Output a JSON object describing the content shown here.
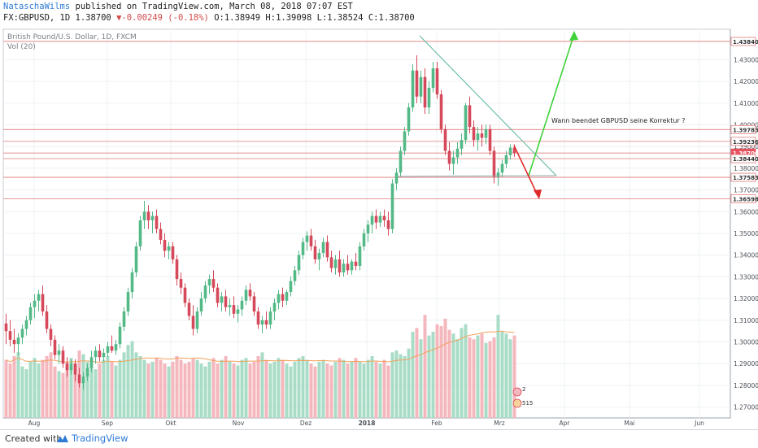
{
  "header": {
    "author": "NataschaWilms",
    "published": "published on TradingView.com, March 08, 2018 07:07 EST",
    "symbol": "FX:GBPUSD, 1D 1.38700",
    "change": "▼-0.00249 (-0.18%)",
    "ohlc": "O:1.38949 H:1.39098 L:1.38524 C:1.38700"
  },
  "footer": {
    "created_with": "Created with",
    "brand": "TradingView"
  },
  "chart_data": {
    "type": "candlestick",
    "title": "British Pound/U.S. Dollar, 1D, FXCM",
    "volume_label": "Vol (20)",
    "annotation": "Wann beendet GBPUSD seine Korrektur ?",
    "x_tick_labels": [
      "Aug",
      "Sep",
      "Okt",
      "Nov",
      "Dez",
      "2018",
      "Feb",
      "Mrz",
      "Apr",
      "Mai",
      "Jun"
    ],
    "y_tick_labels": [
      "1.27000",
      "1.28000",
      "1.29000",
      "1.30000",
      "1.31000",
      "1.32000",
      "1.33000",
      "1.34000",
      "1.35000",
      "1.36000",
      "1.37000",
      "1.38000",
      "1.39000",
      "1.40000",
      "1.41000",
      "1.42000",
      "1.43000"
    ],
    "ylim": [
      1.265,
      1.444
    ],
    "horizontal_levels": [
      {
        "label": "1.43840",
        "value": 1.4384
      },
      {
        "label": "1.39783",
        "value": 1.39783
      },
      {
        "label": "1.39236",
        "value": 1.39236
      },
      {
        "label": "1.38700",
        "value": 1.387
      },
      {
        "label": "1.38440",
        "value": 1.3844
      },
      {
        "label": "1.37583",
        "value": 1.37583
      },
      {
        "label": "1.36598",
        "value": 1.36598
      }
    ],
    "price_label": "1.38700",
    "badges": [
      "2",
      "515"
    ],
    "candles": [
      [
        1.3085,
        1.313,
        1.299,
        1.305
      ],
      [
        1.305,
        1.31,
        1.298,
        1.301
      ],
      [
        1.301,
        1.306,
        1.295,
        1.299
      ],
      [
        1.299,
        1.304,
        1.294,
        1.302
      ],
      [
        1.302,
        1.308,
        1.299,
        1.306
      ],
      [
        1.306,
        1.312,
        1.303,
        1.31
      ],
      [
        1.31,
        1.318,
        1.308,
        1.316
      ],
      [
        1.316,
        1.322,
        1.311,
        1.319
      ],
      [
        1.319,
        1.324,
        1.314,
        1.322
      ],
      [
        1.322,
        1.326,
        1.312,
        1.314
      ],
      [
        1.314,
        1.317,
        1.304,
        1.306
      ],
      [
        1.306,
        1.308,
        1.298,
        1.301
      ],
      [
        1.301,
        1.303,
        1.292,
        1.294
      ],
      [
        1.294,
        1.299,
        1.29,
        1.296
      ],
      [
        1.296,
        1.298,
        1.288,
        1.29
      ],
      [
        1.29,
        1.293,
        1.284,
        1.287
      ],
      [
        1.287,
        1.292,
        1.285,
        1.29
      ],
      [
        1.29,
        1.292,
        1.282,
        1.285
      ],
      [
        1.285,
        1.288,
        1.279,
        1.281
      ],
      [
        1.281,
        1.286,
        1.278,
        1.284
      ],
      [
        1.284,
        1.29,
        1.282,
        1.288
      ],
      [
        1.288,
        1.296,
        1.286,
        1.293
      ],
      [
        1.293,
        1.298,
        1.29,
        1.296
      ],
      [
        1.296,
        1.299,
        1.291,
        1.293
      ],
      [
        1.293,
        1.297,
        1.291,
        1.295
      ],
      [
        1.295,
        1.3,
        1.293,
        1.298
      ],
      [
        1.298,
        1.303,
        1.295,
        1.296
      ],
      [
        1.296,
        1.301,
        1.294,
        1.299
      ],
      [
        1.299,
        1.309,
        1.297,
        1.307
      ],
      [
        1.307,
        1.316,
        1.305,
        1.314
      ],
      [
        1.314,
        1.325,
        1.312,
        1.323
      ],
      [
        1.323,
        1.334,
        1.32,
        1.332
      ],
      [
        1.332,
        1.346,
        1.33,
        1.344
      ],
      [
        1.344,
        1.358,
        1.342,
        1.356
      ],
      [
        1.356,
        1.365,
        1.352,
        1.36
      ],
      [
        1.36,
        1.363,
        1.352,
        1.356
      ],
      [
        1.356,
        1.36,
        1.35,
        1.358
      ],
      [
        1.358,
        1.361,
        1.35,
        1.352
      ],
      [
        1.352,
        1.355,
        1.345,
        1.347
      ],
      [
        1.347,
        1.35,
        1.339,
        1.342
      ],
      [
        1.342,
        1.346,
        1.338,
        1.344
      ],
      [
        1.344,
        1.346,
        1.336,
        1.338
      ],
      [
        1.338,
        1.34,
        1.326,
        1.329
      ],
      [
        1.329,
        1.332,
        1.322,
        1.325
      ],
      [
        1.325,
        1.327,
        1.316,
        1.318
      ],
      [
        1.318,
        1.32,
        1.31,
        1.312
      ],
      [
        1.312,
        1.317,
        1.303,
        1.306
      ],
      [
        1.306,
        1.316,
        1.304,
        1.314
      ],
      [
        1.314,
        1.323,
        1.312,
        1.32
      ],
      [
        1.32,
        1.328,
        1.318,
        1.326
      ],
      [
        1.326,
        1.331,
        1.322,
        1.329
      ],
      [
        1.329,
        1.333,
        1.323,
        1.325
      ],
      [
        1.325,
        1.327,
        1.316,
        1.318
      ],
      [
        1.318,
        1.323,
        1.314,
        1.321
      ],
      [
        1.321,
        1.324,
        1.314,
        1.316
      ],
      [
        1.316,
        1.32,
        1.312,
        1.317
      ],
      [
        1.317,
        1.321,
        1.311,
        1.313
      ],
      [
        1.313,
        1.317,
        1.309,
        1.315
      ],
      [
        1.315,
        1.321,
        1.312,
        1.319
      ],
      [
        1.319,
        1.326,
        1.317,
        1.324
      ],
      [
        1.324,
        1.327,
        1.319,
        1.321
      ],
      [
        1.321,
        1.323,
        1.312,
        1.314
      ],
      [
        1.314,
        1.316,
        1.306,
        1.308
      ],
      [
        1.308,
        1.312,
        1.304,
        1.31
      ],
      [
        1.31,
        1.314,
        1.306,
        1.308
      ],
      [
        1.308,
        1.316,
        1.306,
        1.314
      ],
      [
        1.314,
        1.32,
        1.31,
        1.318
      ],
      [
        1.318,
        1.324,
        1.315,
        1.322
      ],
      [
        1.322,
        1.325,
        1.316,
        1.319
      ],
      [
        1.319,
        1.324,
        1.317,
        1.323
      ],
      [
        1.323,
        1.33,
        1.321,
        1.328
      ],
      [
        1.328,
        1.335,
        1.326,
        1.333
      ],
      [
        1.333,
        1.342,
        1.331,
        1.34
      ],
      [
        1.34,
        1.348,
        1.338,
        1.346
      ],
      [
        1.346,
        1.351,
        1.342,
        1.349
      ],
      [
        1.349,
        1.352,
        1.342,
        1.344
      ],
      [
        1.344,
        1.347,
        1.336,
        1.338
      ],
      [
        1.338,
        1.343,
        1.333,
        1.341
      ],
      [
        1.341,
        1.348,
        1.339,
        1.346
      ],
      [
        1.346,
        1.349,
        1.337,
        1.339
      ],
      [
        1.339,
        1.342,
        1.332,
        1.334
      ],
      [
        1.334,
        1.34,
        1.331,
        1.338
      ],
      [
        1.338,
        1.342,
        1.33,
        1.332
      ],
      [
        1.332,
        1.338,
        1.33,
        1.336
      ],
      [
        1.336,
        1.34,
        1.331,
        1.333
      ],
      [
        1.333,
        1.338,
        1.331,
        1.337
      ],
      [
        1.337,
        1.341,
        1.333,
        1.335
      ],
      [
        1.335,
        1.346,
        1.333,
        1.344
      ],
      [
        1.344,
        1.352,
        1.342,
        1.35
      ],
      [
        1.35,
        1.356,
        1.346,
        1.354
      ],
      [
        1.354,
        1.36,
        1.35,
        1.358
      ],
      [
        1.358,
        1.361,
        1.352,
        1.355
      ],
      [
        1.355,
        1.36,
        1.353,
        1.358
      ],
      [
        1.358,
        1.361,
        1.353,
        1.356
      ],
      [
        1.356,
        1.36,
        1.349,
        1.352
      ],
      [
        1.352,
        1.375,
        1.35,
        1.373
      ],
      [
        1.373,
        1.38,
        1.37,
        1.378
      ],
      [
        1.378,
        1.39,
        1.376,
        1.388
      ],
      [
        1.388,
        1.399,
        1.386,
        1.397
      ],
      [
        1.397,
        1.41,
        1.395,
        1.408
      ],
      [
        1.408,
        1.428,
        1.406,
        1.425
      ],
      [
        1.425,
        1.432,
        1.41,
        1.413
      ],
      [
        1.413,
        1.425,
        1.41,
        1.422
      ],
      [
        1.422,
        1.426,
        1.405,
        1.408
      ],
      [
        1.408,
        1.42,
        1.405,
        1.417
      ],
      [
        1.417,
        1.429,
        1.415,
        1.426
      ],
      [
        1.426,
        1.429,
        1.412,
        1.414
      ],
      [
        1.414,
        1.416,
        1.396,
        1.398
      ],
      [
        1.398,
        1.4,
        1.386,
        1.388
      ],
      [
        1.388,
        1.392,
        1.379,
        1.382
      ],
      [
        1.382,
        1.388,
        1.377,
        1.385
      ],
      [
        1.385,
        1.392,
        1.382,
        1.389
      ],
      [
        1.389,
        1.396,
        1.386,
        1.393
      ],
      [
        1.393,
        1.41,
        1.391,
        1.409
      ],
      [
        1.409,
        1.413,
        1.396,
        1.399
      ],
      [
        1.399,
        1.402,
        1.39,
        1.393
      ],
      [
        1.393,
        1.399,
        1.388,
        1.396
      ],
      [
        1.396,
        1.4,
        1.39,
        1.394
      ],
      [
        1.394,
        1.4,
        1.391,
        1.398
      ],
      [
        1.398,
        1.4,
        1.386,
        1.388
      ],
      [
        1.388,
        1.39,
        1.373,
        1.376
      ],
      [
        1.376,
        1.38,
        1.372,
        1.378
      ],
      [
        1.378,
        1.384,
        1.376,
        1.382
      ],
      [
        1.382,
        1.388,
        1.38,
        1.386
      ],
      [
        1.386,
        1.391,
        1.384,
        1.3895
      ],
      [
        1.3895,
        1.391,
        1.3852,
        1.387
      ]
    ],
    "volumes": [
      62,
      58,
      66,
      70,
      55,
      52,
      60,
      64,
      58,
      62,
      66,
      70,
      55,
      50,
      48,
      60,
      64,
      58,
      72,
      68,
      60,
      55,
      52,
      58,
      62,
      66,
      60,
      56,
      62,
      70,
      78,
      82,
      70,
      66,
      62,
      58,
      60,
      64,
      62,
      58,
      55,
      60,
      66,
      62,
      58,
      60,
      64,
      62,
      58,
      55,
      60,
      64,
      58,
      62,
      66,
      60,
      58,
      56,
      62,
      64,
      58,
      60,
      66,
      70,
      62,
      58,
      60,
      64,
      62,
      58,
      55,
      60,
      64,
      66,
      62,
      58,
      55,
      60,
      62,
      58,
      56,
      60,
      64,
      62,
      58,
      60,
      64,
      60,
      58,
      62,
      66,
      60,
      58,
      62,
      56,
      70,
      72,
      68,
      66,
      74,
      92,
      96,
      84,
      110,
      88,
      92,
      100,
      98,
      106,
      94,
      90,
      84,
      96,
      100,
      86,
      84,
      88,
      90,
      80,
      82,
      86,
      110,
      92,
      90,
      84,
      88
    ]
  }
}
